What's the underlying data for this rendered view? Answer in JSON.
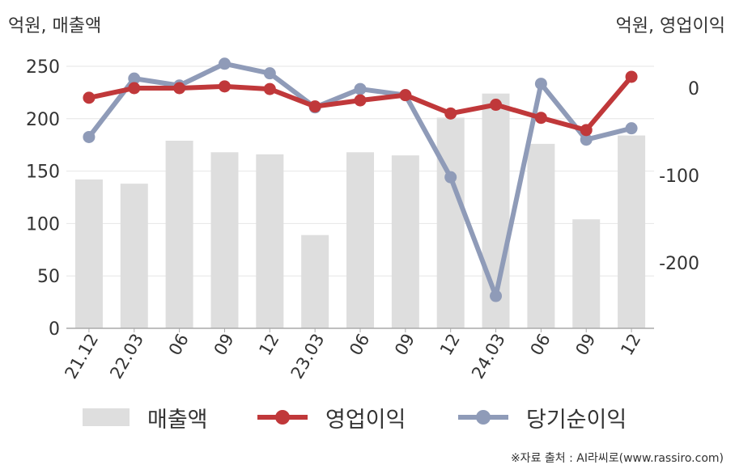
{
  "units": {
    "left": "억원, 매출액",
    "right": "억원, 영업이익"
  },
  "source": "※자료 출처 : AI라씨로(www.rassiro.com)",
  "chart_data": {
    "type": "bar+line",
    "categories": [
      "21.12",
      "22.03",
      "06",
      "09",
      "12",
      "23.03",
      "06",
      "09",
      "12",
      "24.03",
      "06",
      "09",
      "12"
    ],
    "left_axis": {
      "ylim": [
        0,
        250
      ],
      "ticks": [
        0,
        50,
        100,
        150,
        200,
        250
      ]
    },
    "right_axis": {
      "ylim": [
        -275,
        25
      ],
      "ticks": [
        0,
        -100,
        -200
      ]
    },
    "grid": true,
    "legend_position": "bottom",
    "series": [
      {
        "name": "매출액",
        "type": "bar",
        "axis": "left",
        "color": "#dedede",
        "values": [
          142,
          138,
          179,
          168,
          166,
          89,
          168,
          165,
          201,
          224,
          176,
          104,
          184
        ]
      },
      {
        "name": "영업이익",
        "type": "line",
        "axis": "right",
        "color": "#c0383a",
        "values": [
          -11,
          0,
          0,
          2,
          -1,
          -21,
          -14,
          -8,
          -29,
          -19,
          -34,
          -48,
          13
        ]
      },
      {
        "name": "당기순이익",
        "type": "line",
        "axis": "right",
        "color": "#8f9bb8",
        "values": [
          -56,
          11,
          3,
          28,
          17,
          -22,
          -1,
          -8,
          -102,
          -238,
          5,
          -59,
          -46
        ]
      }
    ]
  }
}
